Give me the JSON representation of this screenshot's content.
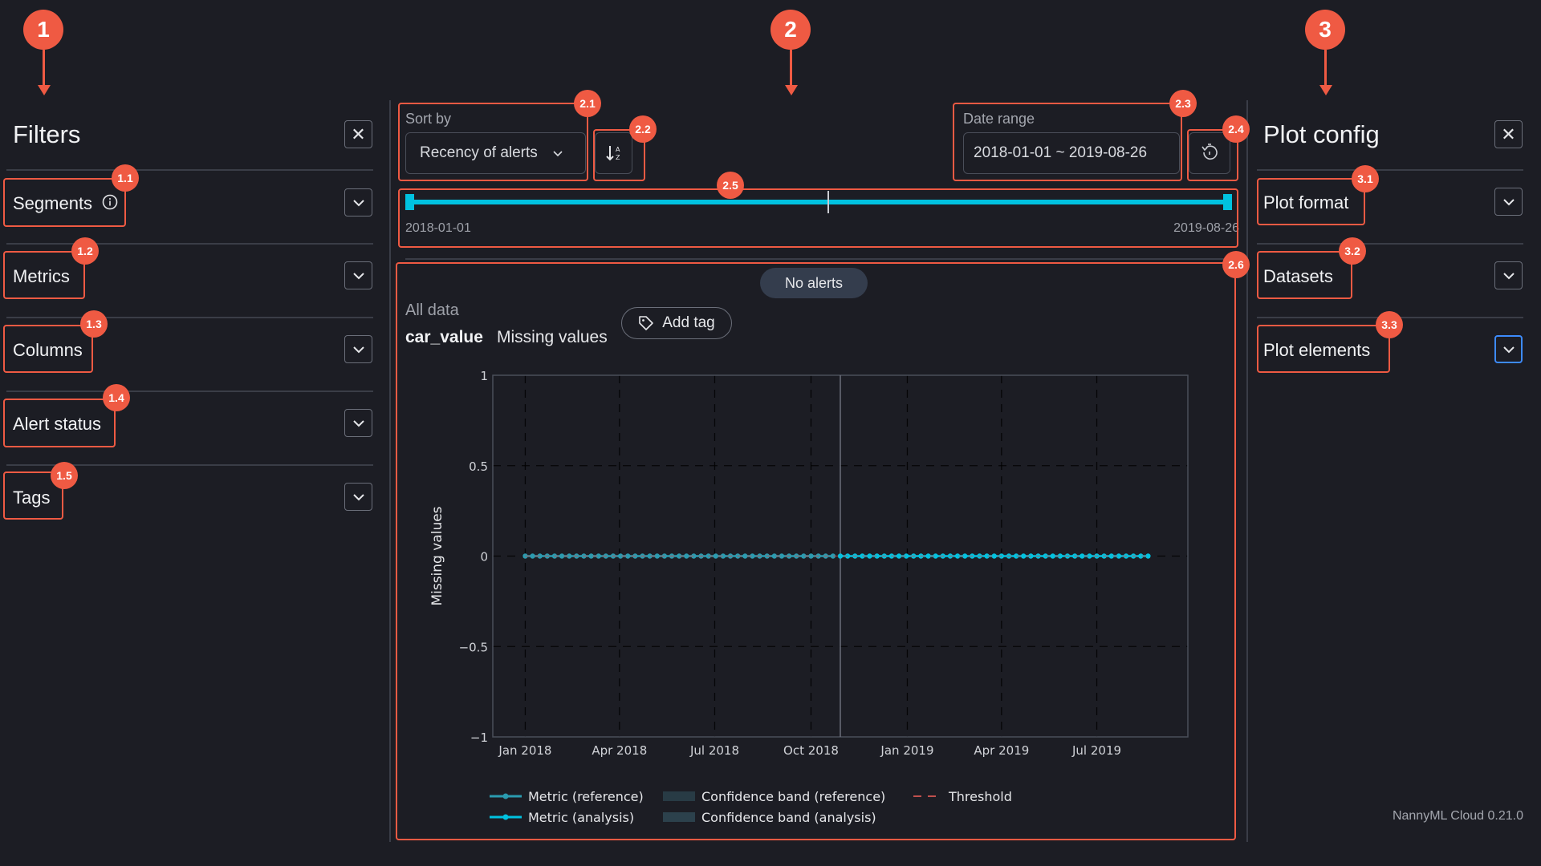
{
  "annotations": {
    "main": [
      "1",
      "2",
      "3"
    ],
    "badges": [
      "1.1",
      "1.2",
      "1.3",
      "1.4",
      "1.5",
      "2.1",
      "2.2",
      "2.3",
      "2.4",
      "2.5",
      "2.6",
      "3.1",
      "3.2",
      "3.3"
    ]
  },
  "filters": {
    "title": "Filters",
    "close_icon": "close-icon",
    "items": [
      {
        "label": "Segments",
        "icon": "info-icon"
      },
      {
        "label": "Metrics"
      },
      {
        "label": "Columns"
      },
      {
        "label": "Alert status"
      },
      {
        "label": "Tags"
      }
    ]
  },
  "toolbar": {
    "sort_label": "Sort by",
    "sort_value": "Recency of alerts",
    "sort_order_icon": "sort-az-icon",
    "date_label": "Date range",
    "date_value": "2018-01-01 ~ 2019-08-26",
    "reset_icon": "history-reset-icon"
  },
  "slider": {
    "start": "2018-01-01",
    "end": "2019-08-26",
    "range_fraction": [
      0,
      1
    ],
    "color": "#00c2e0"
  },
  "card": {
    "alert_pill": "No alerts",
    "segment": "All data",
    "column": "car_value",
    "metric": "Missing values",
    "add_tag": "Add tag"
  },
  "plot_config": {
    "title": "Plot config",
    "items": [
      {
        "label": "Plot format"
      },
      {
        "label": "Datasets"
      },
      {
        "label": "Plot elements"
      }
    ]
  },
  "footer": {
    "version": "NannyML Cloud 0.21.0"
  },
  "colors": {
    "accent": "#00c2e0",
    "annotation": "#ef5a43",
    "reference": "#2a9bb0",
    "threshold": "#c0504d",
    "focus": "#3d8bfd"
  },
  "chart_data": {
    "type": "line",
    "ylabel": "Missing values",
    "ylim": [
      -1,
      1
    ],
    "xlim": [
      "2017-12-01",
      "2019-09-26"
    ],
    "yticks": [
      "1",
      "0.5",
      "0",
      "−0.5",
      "−1"
    ],
    "ytick_values": [
      1,
      0.5,
      0,
      -0.5,
      -1
    ],
    "xticks": [
      "Jan 2018",
      "Apr 2018",
      "Jul 2018",
      "Oct 2018",
      "Jan 2019",
      "Apr 2019",
      "Jul 2019"
    ],
    "xtick_dates": [
      "2018-01-01",
      "2018-04-01",
      "2018-07-01",
      "2018-10-01",
      "2019-01-01",
      "2019-04-01",
      "2019-07-01"
    ],
    "grid": true,
    "reference_end_marker": "2018-10-29",
    "legend": [
      "Metric (reference)",
      "Confidence band (reference)",
      "Threshold",
      "Metric (analysis)",
      "Confidence band (analysis)"
    ],
    "legend_placement": "bottom",
    "series": [
      {
        "name": "Metric (reference)",
        "color": "#2a9bb0",
        "x": [
          "2018-01-01",
          "2018-01-08",
          "2018-01-15",
          "2018-01-22",
          "2018-01-29",
          "2018-02-05",
          "2018-02-12",
          "2018-02-19",
          "2018-02-26",
          "2018-03-05",
          "2018-03-12",
          "2018-03-19",
          "2018-03-26",
          "2018-04-02",
          "2018-04-09",
          "2018-04-16",
          "2018-04-23",
          "2018-04-30",
          "2018-05-07",
          "2018-05-14",
          "2018-05-21",
          "2018-05-28",
          "2018-06-04",
          "2018-06-11",
          "2018-06-18",
          "2018-06-25",
          "2018-07-02",
          "2018-07-09",
          "2018-07-16",
          "2018-07-23",
          "2018-07-30",
          "2018-08-06",
          "2018-08-13",
          "2018-08-20",
          "2018-08-27",
          "2018-09-03",
          "2018-09-10",
          "2018-09-17",
          "2018-09-24",
          "2018-10-01",
          "2018-10-08",
          "2018-10-15",
          "2018-10-22"
        ],
        "y": [
          0,
          0,
          0,
          0,
          0,
          0,
          0,
          0,
          0,
          0,
          0,
          0,
          0,
          0,
          0,
          0,
          0,
          0,
          0,
          0,
          0,
          0,
          0,
          0,
          0,
          0,
          0,
          0,
          0,
          0,
          0,
          0,
          0,
          0,
          0,
          0,
          0,
          0,
          0,
          0,
          0,
          0,
          0
        ]
      },
      {
        "name": "Metric (analysis)",
        "color": "#00c2e0",
        "x": [
          "2018-10-29",
          "2018-11-05",
          "2018-11-12",
          "2018-11-19",
          "2018-11-26",
          "2018-12-03",
          "2018-12-10",
          "2018-12-17",
          "2018-12-24",
          "2018-12-31",
          "2019-01-07",
          "2019-01-14",
          "2019-01-21",
          "2019-01-28",
          "2019-02-04",
          "2019-02-11",
          "2019-02-18",
          "2019-02-25",
          "2019-03-04",
          "2019-03-11",
          "2019-03-18",
          "2019-03-25",
          "2019-04-01",
          "2019-04-08",
          "2019-04-15",
          "2019-04-22",
          "2019-04-29",
          "2019-05-06",
          "2019-05-13",
          "2019-05-20",
          "2019-05-27",
          "2019-06-03",
          "2019-06-10",
          "2019-06-17",
          "2019-06-24",
          "2019-07-01",
          "2019-07-08",
          "2019-07-15",
          "2019-07-22",
          "2019-07-29",
          "2019-08-05",
          "2019-08-12",
          "2019-08-19"
        ],
        "y": [
          0,
          0,
          0,
          0,
          0,
          0,
          0,
          0,
          0,
          0,
          0,
          0,
          0,
          0,
          0,
          0,
          0,
          0,
          0,
          0,
          0,
          0,
          0,
          0,
          0,
          0,
          0,
          0,
          0,
          0,
          0,
          0,
          0,
          0,
          0,
          0,
          0,
          0,
          0,
          0,
          0,
          0,
          0
        ]
      },
      {
        "name": "Threshold",
        "color": "#c0504d",
        "y_constant": 0
      }
    ]
  }
}
